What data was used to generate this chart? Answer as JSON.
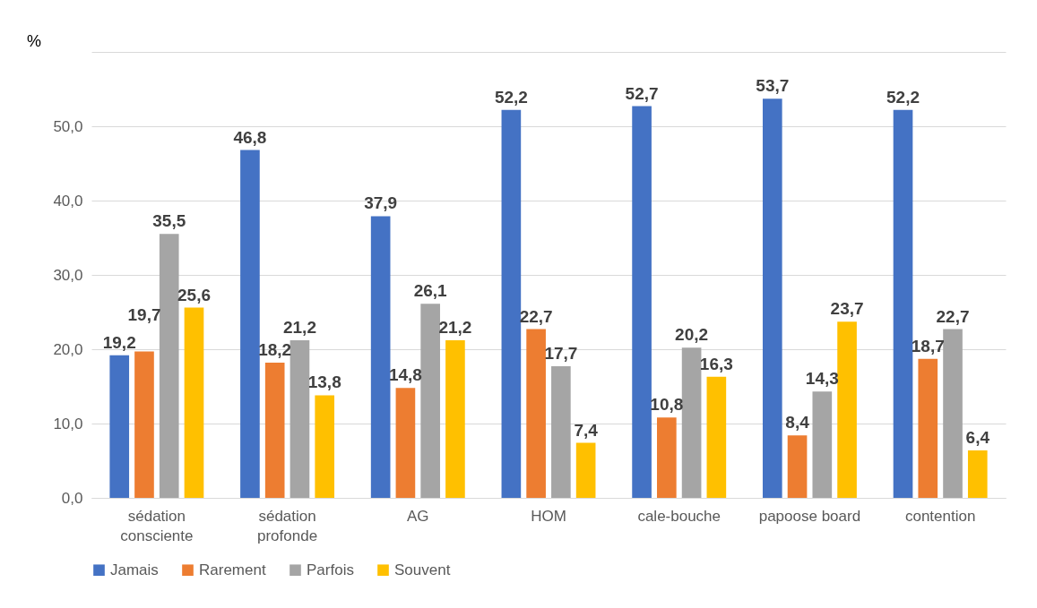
{
  "chart_data": {
    "type": "bar",
    "ylabel": "%",
    "categories": [
      "sédation consciente",
      "sédation profonde",
      "AG",
      "HOM",
      "cale-bouche",
      "papoose board",
      "contention"
    ],
    "series": [
      {
        "name": "Jamais",
        "color": "#4472c4",
        "values": [
          19.2,
          46.8,
          37.9,
          52.2,
          52.7,
          53.7,
          52.2
        ],
        "value_labels": [
          "19,2",
          "46,8",
          "37,9",
          "52,2",
          "52,7",
          "53,7",
          "52,2"
        ]
      },
      {
        "name": "Rarement",
        "color": "#ed7d31",
        "values": [
          19.7,
          18.2,
          14.8,
          22.7,
          10.8,
          8.4,
          18.7
        ],
        "value_labels": [
          "19,7",
          "18,2",
          "14,8",
          "22,7",
          "10,8",
          "8,4",
          "18,7"
        ]
      },
      {
        "name": "Parfois",
        "color": "#a5a5a5",
        "values": [
          35.5,
          21.2,
          26.1,
          17.7,
          20.2,
          14.3,
          22.7
        ],
        "value_labels": [
          "35,5",
          "21,2",
          "26,1",
          "17,7",
          "20,2",
          "14,3",
          "22,7"
        ]
      },
      {
        "name": "Souvent",
        "color": "#ffc000",
        "values": [
          25.6,
          13.8,
          21.2,
          7.4,
          16.3,
          23.7,
          6.4
        ],
        "value_labels": [
          "25,6",
          "13,8",
          "21,2",
          "7,4",
          "16,3",
          "23,7",
          "6,4"
        ]
      }
    ],
    "ylim": [
      0,
      60
    ],
    "yticks": [
      {
        "value": 0,
        "label": "0,0"
      },
      {
        "value": 10,
        "label": "10,0"
      },
      {
        "value": 20,
        "label": "20,0"
      },
      {
        "value": 30,
        "label": "30,0"
      },
      {
        "value": 40,
        "label": "40,0"
      },
      {
        "value": 50,
        "label": "50,0"
      },
      {
        "value": 60,
        "label": null
      }
    ],
    "grid": "y",
    "legend": "bottom"
  }
}
